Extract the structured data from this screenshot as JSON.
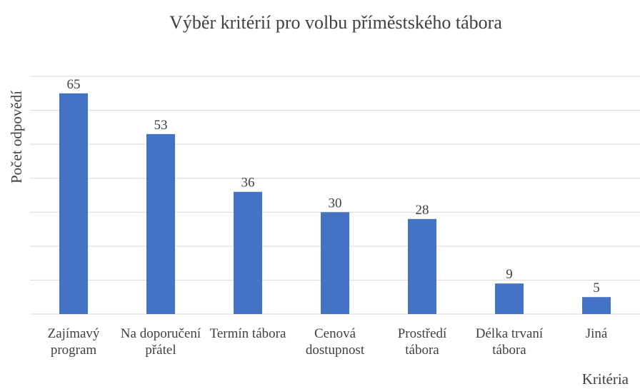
{
  "chart_data": {
    "type": "bar",
    "title": "Výběr kritérií pro volbu příměstského tábora",
    "y_label": "Počet odpovědí",
    "x_label": "Kritéria",
    "categories": [
      "Zajímavý program",
      "Na doporučení přátel",
      "Termín tábora",
      "Cenová dostupnost",
      "Prostředí tábora",
      "Délka trvaní tábora",
      "Jiná"
    ],
    "values": [
      65,
      53,
      36,
      30,
      28,
      9,
      5
    ],
    "color": "#4472c4",
    "ylim": [
      0,
      70
    ],
    "yticks": [
      0,
      10,
      20,
      30,
      40,
      50,
      60,
      70
    ],
    "grid": true
  }
}
